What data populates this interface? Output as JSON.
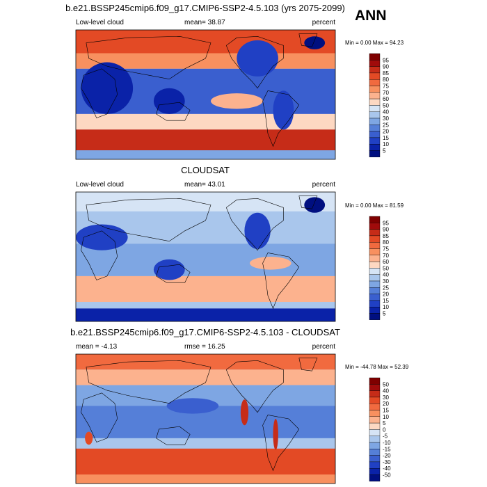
{
  "figure": {
    "season": "ANN"
  },
  "chart_data": [
    {
      "type": "heatmap",
      "title": "b.e21.BSSP245cmip6.f09_g17.CMIP6-SSP2-4.5.103 (yrs 2075-2099)",
      "left_label": "Low-level cloud",
      "stat_label": "mean=  38.87",
      "units": "percent",
      "minmax": "Min =   0.00 Max =  94.23",
      "colorbar_levels": [
        "95",
        "90",
        "85",
        "80",
        "75",
        "70",
        "60",
        "50",
        "40",
        "30",
        "25",
        "20",
        "15",
        "10",
        "5"
      ],
      "colorbar_colors": [
        "#7f0000",
        "#a00b0b",
        "#c62c18",
        "#e34a25",
        "#f16a3f",
        "#f8905f",
        "#fcb28e",
        "#fdd8c2",
        "#d6e4f5",
        "#a9c6ec",
        "#7ea6e3",
        "#557fd8",
        "#3a5fcf",
        "#2040c4",
        "#0a22a8",
        "#000f80"
      ],
      "mean": 38.87,
      "min": 0.0,
      "max": 94.23
    },
    {
      "type": "heatmap",
      "title": "CLOUDSAT",
      "left_label": "Low-level cloud",
      "stat_label": "mean=  43.01",
      "units": "percent",
      "minmax": "Min =   0.00 Max =  81.59",
      "colorbar_levels": [
        "95",
        "90",
        "85",
        "80",
        "75",
        "70",
        "60",
        "50",
        "40",
        "30",
        "25",
        "20",
        "15",
        "10",
        "5"
      ],
      "colorbar_colors": [
        "#7f0000",
        "#a00b0b",
        "#c62c18",
        "#e34a25",
        "#f16a3f",
        "#f8905f",
        "#fcb28e",
        "#fdd8c2",
        "#d6e4f5",
        "#a9c6ec",
        "#7ea6e3",
        "#557fd8",
        "#3a5fcf",
        "#2040c4",
        "#0a22a8",
        "#000f80"
      ],
      "mean": 43.01,
      "min": 0.0,
      "max": 81.59
    },
    {
      "type": "heatmap",
      "title": "b.e21.BSSP245cmip6.f09_g17.CMIP6-SSP2-4.5.103 - CLOUDSAT",
      "left_label": "mean =  -4.13",
      "stat_label": "rmse =  16.25",
      "units": "percent",
      "minmax": "Min = -44.78 Max =  52.39",
      "colorbar_levels": [
        "50",
        "40",
        "30",
        "20",
        "15",
        "10",
        "5",
        "0",
        "-5",
        "-10",
        "-15",
        "-20",
        "-30",
        "-40",
        "-50"
      ],
      "colorbar_colors": [
        "#7f0000",
        "#a00b0b",
        "#c62c18",
        "#e34a25",
        "#f16a3f",
        "#f8905f",
        "#fcb28e",
        "#fdd8c2",
        "#d6e4f5",
        "#a9c6ec",
        "#7ea6e3",
        "#557fd8",
        "#3a5fcf",
        "#2040c4",
        "#0a22a8",
        "#000f80"
      ],
      "mean": -4.13,
      "rmse": 16.25,
      "min": -44.78,
      "max": 52.39
    }
  ]
}
